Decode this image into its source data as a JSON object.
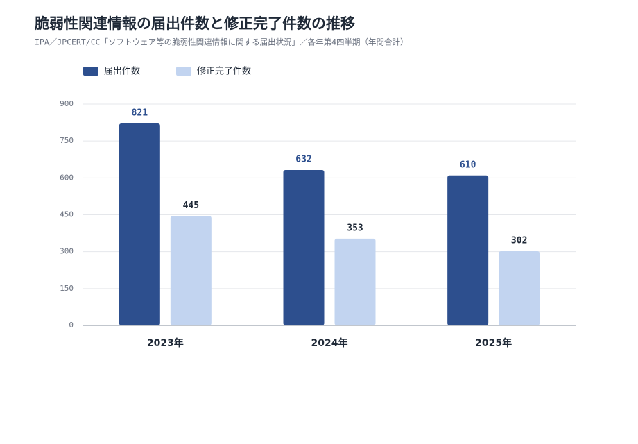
{
  "chart_data": {
    "type": "bar",
    "title": "脆弱性関連情報の届出件数と修正完了件数の推移",
    "subtitle": "IPA／JPCERT/CC「ソフトウェア等の脆弱性関連情報に関する届出状況」／各年第4四半期（年間合計）",
    "categories": [
      "2023年",
      "2024年",
      "2025年"
    ],
    "series": [
      {
        "name": "届出件数",
        "color": "#2d4f8e",
        "values": [
          821,
          632,
          610
        ]
      },
      {
        "name": "修正完了件数",
        "color": "#c2d4f0",
        "values": [
          445,
          353,
          302
        ]
      }
    ],
    "ylim": [
      0,
      900
    ],
    "yticks": [
      0,
      150,
      300,
      450,
      600,
      750,
      900
    ],
    "grid": true,
    "legend": "top-left"
  }
}
